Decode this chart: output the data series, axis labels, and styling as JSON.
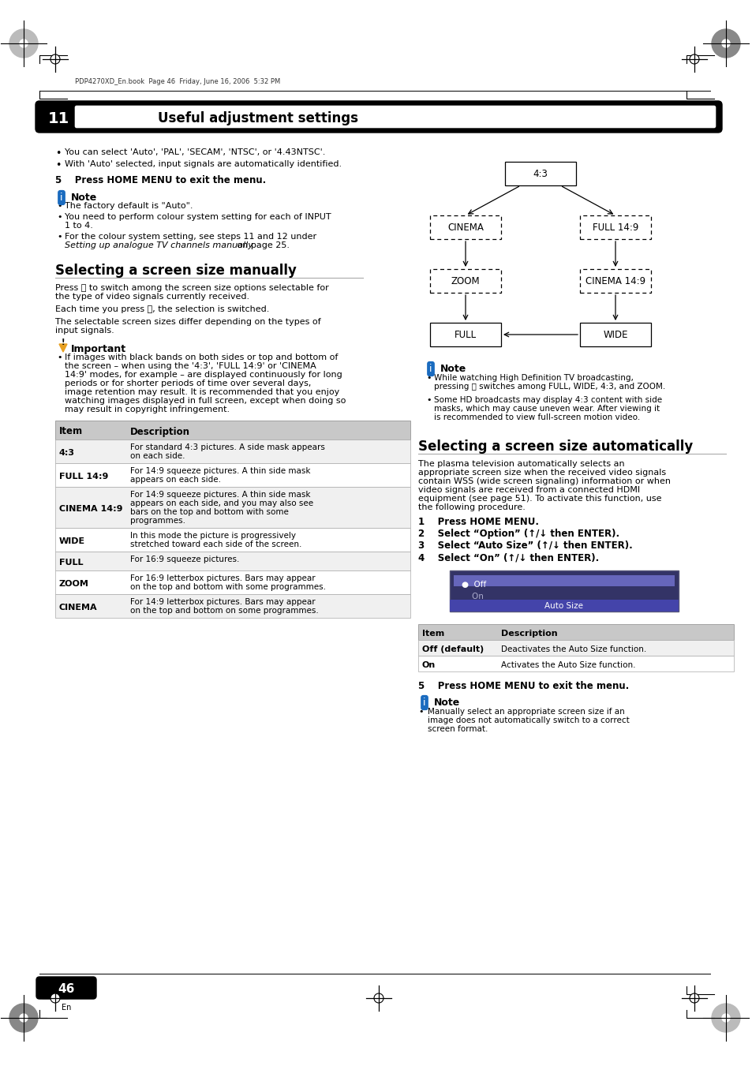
{
  "page_number": "46",
  "header_text": "PDP4270XD_En.book  Page 46  Friday, June 16, 2006  5:32 PM",
  "chapter_number": "11",
  "chapter_title": "Useful adjustment settings",
  "bg_color": "#ffffff",
  "text_color": "#000000",
  "intro_bullets": [
    "You can select 'Auto', 'PAL', 'SECAM', 'NTSC', or '4.43NTSC'.",
    "With 'Auto' selected, input signals are automatically identified."
  ],
  "step5_text": "5    Press HOME MENU to exit the menu.",
  "note_section1": {
    "title": "Note",
    "bullets": [
      "The factory default is \"Auto\".",
      "You need to perform colour system setting for each of INPUT 1 to 4.",
      "For the colour system setting, see steps 11 and 12 under Setting up analogue TV channels manually on page 25."
    ]
  },
  "section1_title": "Selecting a screen size manually",
  "section1_para1": "Press Ⓐ to switch among the screen size options selectable for the type of video signals currently received.",
  "section1_para2": "Each time you press Ⓐ, the selection is switched.",
  "section1_para3": "The selectable screen sizes differ depending on the types of input signals.",
  "important_title": "Important",
  "important_bullets": [
    "If images with black bands on both sides or top and bottom of the screen – when using the '4:3', 'FULL 14:9' or 'CINEMA 14:9' modes, for example – are displayed continuously for long periods or for shorter periods of time over several days, image retention may result. It is recommended that you enjoy watching images displayed in full screen, except when doing so may result in copyright infringement."
  ],
  "right_note_bullets": [
    "While watching High Definition TV broadcasting, pressing Ⓐ switches among FULL, WIDE, 4:3, and ZOOM.",
    "Some HD broadcasts may display 4:3 content with side masks, which may cause uneven wear. After viewing it is recommended to view full-screen motion video."
  ],
  "section2_title": "Selecting a screen size automatically",
  "section2_para": "The plasma television automatically selects an appropriate screen size when the received video signals contain WSS (wide screen signaling) information or when video signals are received from a connected HDMI equipment (see page 51). To activate this function, use the following procedure.",
  "steps": [
    "1    Press HOME MENU.",
    "2    Select “Option” (↑/↓ then ENTER).",
    "3    Select “Auto Size” (↑/↓ then ENTER).",
    "4    Select “On” (↑/↓ then ENTER)."
  ],
  "auto_size_table": {
    "headers": [
      "Item",
      "Description"
    ],
    "rows": [
      [
        "Off (default)",
        "Deactivates the Auto Size function."
      ],
      [
        "On",
        "Activates the Auto Size function."
      ]
    ]
  },
  "step5b_text": "5    Press HOME MENU to exit the menu.",
  "note_section2": {
    "title": "Note",
    "bullets": [
      "Manually select an appropriate screen size if an image does not automatically switch to a correct screen format."
    ]
  },
  "screen_table": {
    "headers": [
      "Item",
      "Description"
    ],
    "rows": [
      [
        "4:3",
        "For standard 4:3 pictures. A side mask appears on each side."
      ],
      [
        "FULL 14:9",
        "For 14:9 squeeze pictures. A thin side mask appears on each side."
      ],
      [
        "CINEMA 14:9",
        "For 14:9 squeeze pictures. A thin side mask appears on each side, and you may also see bars on the top and bottom with some programmes."
      ],
      [
        "WIDE",
        "In this mode the picture is progressively stretched toward each side of the screen."
      ],
      [
        "FULL",
        "For 16:9 squeeze pictures."
      ],
      [
        "ZOOM",
        "For 16:9 letterbox pictures. Bars may appear on the top and bottom with some programmes."
      ],
      [
        "CINEMA",
        "For 14:9 letterbox pictures. Bars may appear on the top and bottom on some programmes."
      ]
    ]
  }
}
